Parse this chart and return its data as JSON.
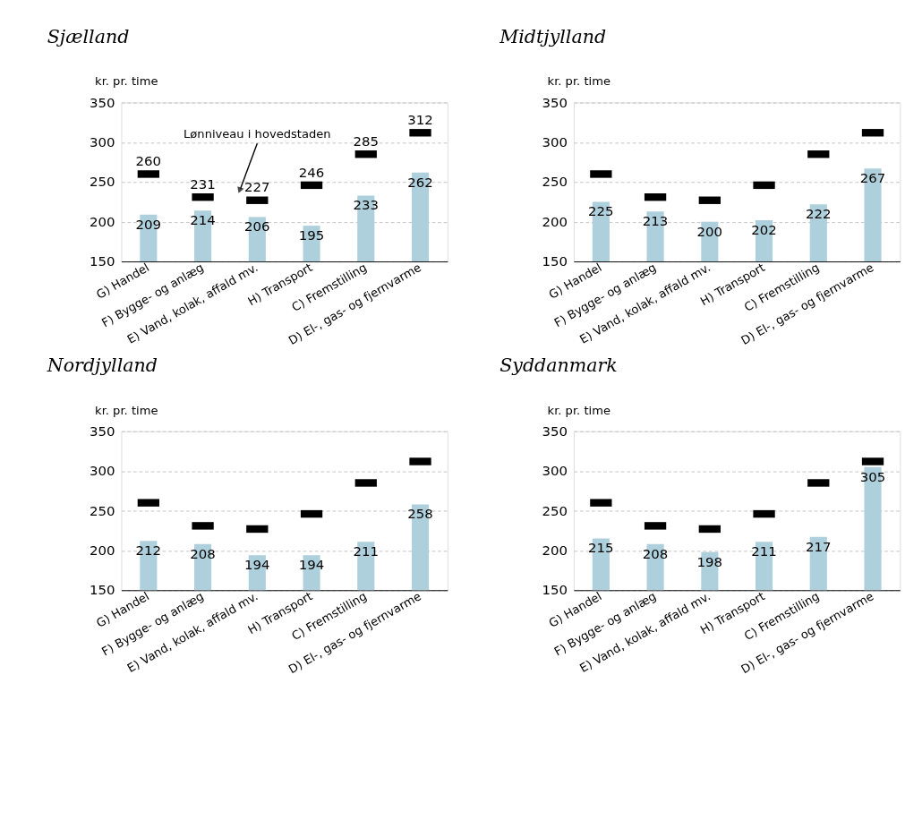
{
  "chart_data": [
    {
      "type": "bar",
      "title": "Sjælland",
      "ylabel": "kr. pr. time",
      "categories": [
        "G) Handel",
        "F) Bygge- og anlæg",
        "E) Vand, kolak, affald mv.",
        "H) Transport",
        "C) Fremstilling",
        "D) El-, gas- og fjernvarme"
      ],
      "ylim": [
        150,
        350
      ],
      "yticks": [
        150,
        200,
        250,
        300,
        350
      ],
      "grid": "y",
      "annotations": [
        "Lønniveau i hovedstaden"
      ],
      "series": [
        {
          "color": "#aed0dc",
          "values": [
            209,
            214,
            206,
            195,
            233,
            262
          ],
          "value_labels": [
            "209",
            "214",
            "206",
            "195",
            "233",
            "262"
          ]
        },
        {
          "type": "scatter",
          "color": "#000000",
          "values": [
            260,
            231,
            227,
            246,
            285,
            312
          ],
          "value_labels": [
            "260",
            "231",
            "227",
            "246",
            "285",
            "312"
          ]
        }
      ]
    },
    {
      "type": "bar",
      "title": "Midtjylland",
      "ylabel": "kr. pr. time",
      "categories": [
        "G) Handel",
        "F) Bygge- og anlæg",
        "E) Vand, kolak, affald mv.",
        "H) Transport",
        "C) Fremstilling",
        "D) El-, gas- og fjernvarme"
      ],
      "ylim": [
        150,
        350
      ],
      "yticks": [
        150,
        200,
        250,
        300,
        350
      ],
      "grid": "y",
      "series": [
        {
          "color": "#aed0dc",
          "values": [
            225,
            213,
            200,
            202,
            222,
            267
          ],
          "value_labels": [
            "225",
            "213",
            "200",
            "202",
            "222",
            "267"
          ]
        },
        {
          "type": "scatter",
          "color": "#000000",
          "values": [
            260,
            231,
            227,
            246,
            285,
            312
          ]
        }
      ]
    },
    {
      "type": "bar",
      "title": "Nordjylland",
      "ylabel": "kr. pr. time",
      "categories": [
        "G) Handel",
        "F) Bygge- og anlæg",
        "E) Vand, kolak, affald mv.",
        "H) Transport",
        "C) Fremstilling",
        "D) El-, gas- og fjernvarme"
      ],
      "ylim": [
        150,
        350
      ],
      "yticks": [
        150,
        200,
        250,
        300,
        350
      ],
      "grid": "y",
      "series": [
        {
          "color": "#aed0dc",
          "values": [
            212,
            208,
            194,
            194,
            211,
            258
          ],
          "value_labels": [
            "212",
            "208",
            "194",
            "194",
            "211",
            "258"
          ]
        },
        {
          "type": "scatter",
          "color": "#000000",
          "values": [
            260,
            231,
            227,
            246,
            285,
            312
          ]
        }
      ]
    },
    {
      "type": "bar",
      "title": "Syddanmark",
      "ylabel": "kr. pr. time",
      "categories": [
        "G) Handel",
        "F) Bygge- og anlæg",
        "E) Vand, kolak, affald mv.",
        "H) Transport",
        "C) Fremstilling",
        "D) El-, gas- og fjernvarme"
      ],
      "ylim": [
        150,
        350
      ],
      "yticks": [
        150,
        200,
        250,
        300,
        350
      ],
      "grid": "y",
      "series": [
        {
          "color": "#aed0dc",
          "values": [
            215,
            208,
            198,
            211,
            217,
            305
          ],
          "value_labels": [
            "215",
            "208",
            "198",
            "211",
            "217",
            "305"
          ]
        },
        {
          "type": "scatter",
          "color": "#000000",
          "values": [
            260,
            231,
            227,
            246,
            285,
            312
          ]
        }
      ]
    }
  ]
}
